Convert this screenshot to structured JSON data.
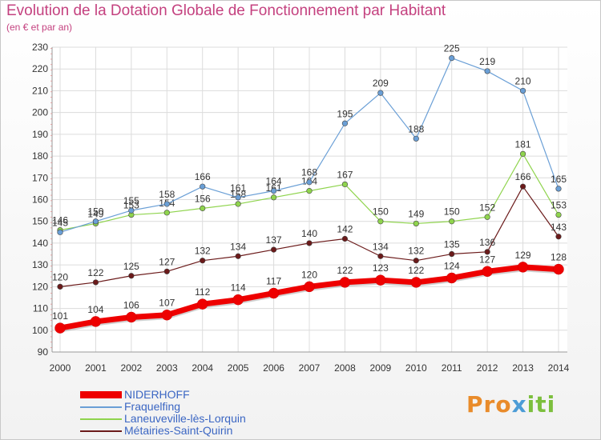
{
  "title": "Evolution de la Dotation Globale de Fonctionnement par Habitant",
  "subtitle": "(en € et par an)",
  "logo": {
    "part1": "Pro",
    "part2": "x",
    "part3": "iti"
  },
  "chart_data": {
    "type": "line",
    "title": "Evolution de la Dotation Globale de Fonctionnement par Habitant",
    "ylabel": "(en € et par an)",
    "xlabel": "",
    "categories": [
      "2000",
      "2001",
      "2002",
      "2003",
      "2004",
      "2005",
      "2006",
      "2007",
      "2008",
      "2009",
      "2010",
      "2011",
      "2012",
      "2013",
      "2014"
    ],
    "ylim": [
      90,
      230
    ],
    "yticks": [
      90,
      100,
      110,
      120,
      130,
      140,
      150,
      160,
      170,
      180,
      190,
      200,
      210,
      220,
      230
    ],
    "grid": true,
    "legend_position": "bottom-left",
    "series": [
      {
        "name": "Métairies-Saint-Quirin",
        "color": "#6b1a1a",
        "width": 1.2,
        "values": [
          120,
          122,
          125,
          127,
          132,
          134,
          137,
          140,
          142,
          134,
          132,
          135,
          136,
          166,
          143
        ]
      },
      {
        "name": "Laneuveville-lès-Lorquin",
        "color": "#8fd44d",
        "width": 1.2,
        "values": [
          146,
          149,
          153,
          154,
          156,
          158,
          161,
          164,
          167,
          150,
          149,
          150,
          152,
          181,
          153
        ]
      },
      {
        "name": "Fraquelfing",
        "color": "#6a9fd6",
        "width": 1.2,
        "values": [
          145,
          150,
          155,
          158,
          166,
          161,
          164,
          168,
          195,
          209,
          188,
          225,
          219,
          210,
          165
        ]
      },
      {
        "name": "NIDERHOFF",
        "color": "#ee0000",
        "width": 7,
        "values": [
          101,
          104,
          106,
          107,
          112,
          114,
          117,
          120,
          122,
          123,
          122,
          124,
          127,
          129,
          128
        ]
      }
    ],
    "legend_order": [
      "NIDERHOFF",
      "Fraquelfing",
      "Laneuveville-lès-Lorquin",
      "Métairies-Saint-Quirin"
    ]
  }
}
